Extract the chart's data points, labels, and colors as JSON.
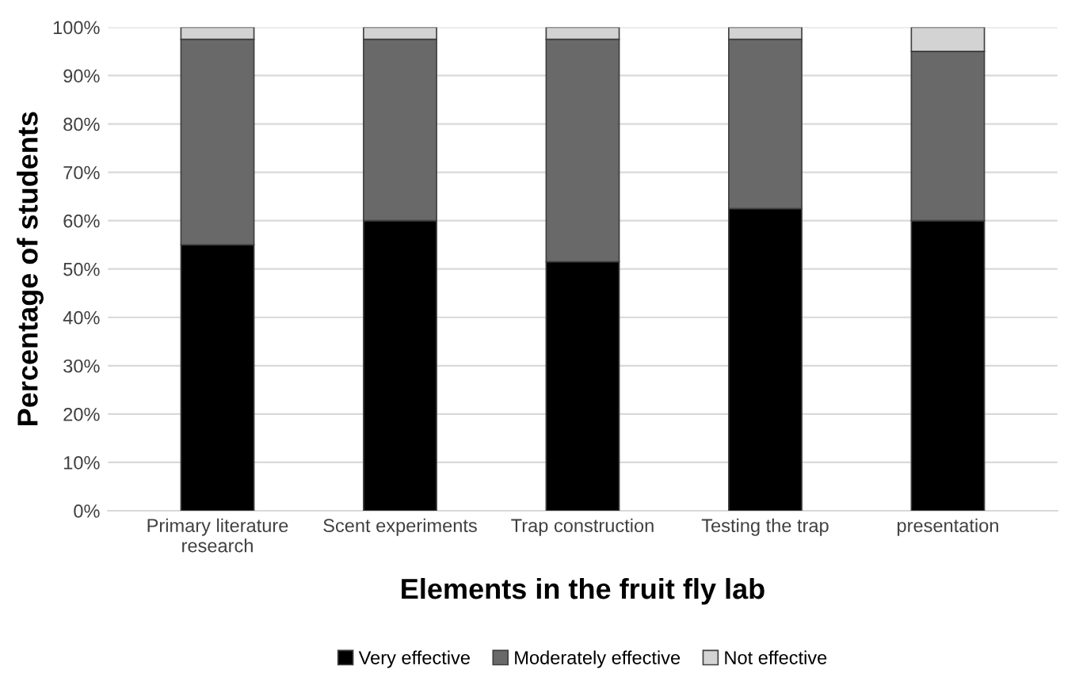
{
  "chart_data": {
    "type": "bar",
    "stacked": true,
    "xlabel": "Elements in the fruit fly lab",
    "ylabel": "Percentage of students",
    "categories": [
      "Primary literature research",
      "Scent experiments",
      "Trap construction",
      "Testing the trap",
      "presentation"
    ],
    "series": [
      {
        "name": "Very effective",
        "color": "#000000",
        "values": [
          55,
          60,
          51.5,
          62.5,
          60
        ]
      },
      {
        "name": "Moderately effective",
        "color": "#696969",
        "values": [
          42.5,
          37.5,
          46,
          35,
          35
        ]
      },
      {
        "name": "Not effective",
        "color": "#d3d3d3",
        "values": [
          2.5,
          2.5,
          2.5,
          2.5,
          5
        ]
      }
    ],
    "ylim": [
      0,
      100
    ],
    "yticks": [
      {
        "value": 0,
        "label": "0%"
      },
      {
        "value": 10,
        "label": "10%"
      },
      {
        "value": 20,
        "label": "20%"
      },
      {
        "value": 30,
        "label": "30%"
      },
      {
        "value": 40,
        "label": "40%"
      },
      {
        "value": 50,
        "label": "50%"
      },
      {
        "value": 60,
        "label": "60%"
      },
      {
        "value": 70,
        "label": "70%"
      },
      {
        "value": 80,
        "label": "80%"
      },
      {
        "value": 90,
        "label": "90%"
      },
      {
        "value": 100,
        "label": "100%"
      }
    ],
    "grid": "y",
    "legend": "bottom"
  }
}
